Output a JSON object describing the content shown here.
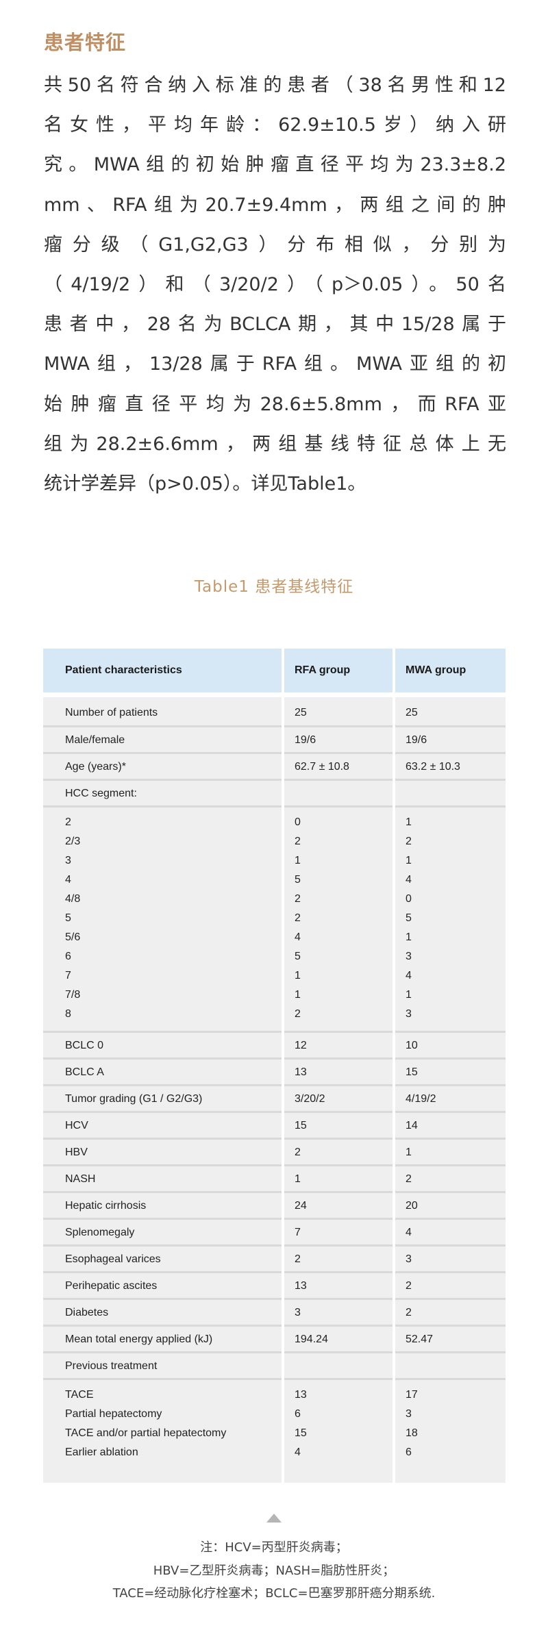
{
  "section_title": "患者特征",
  "paragraph_lines": [
    "共50名符合纳入标准的患者（38名男性和12",
    "名女性，平均年龄：62.9±10.5岁）纳入研",
    "究。MWA组的初始肿瘤直径平均为23.3±8.2",
    "mm、RFA组为20.7±9.4mm，两组之间的肿",
    "瘤分级（G1,G2,G3）分布相似，分别为",
    "（4/19/2）和（3/20/2）（p＞0.05）。50名",
    "患者中，28名为BCLCA期，其中15/28属于",
    "MWA组，13/28属于RFA组。MWA亚组的初",
    "始肿瘤直径平均为28.6±5.8mm，而RFA亚",
    "组为28.2±6.6mm，两组基线特征总体上无",
    "统计学差异（p>0.05）。详见Table1。"
  ],
  "table_caption": "Table1 患者基线特征",
  "table": {
    "headers": [
      "Patient characteristics",
      "RFA group",
      "MWA group"
    ],
    "rows_top": [
      [
        "Number of patients",
        "25",
        "25"
      ],
      [
        "Male/female",
        "19/6",
        "19/6"
      ],
      [
        "Age (years)*",
        "62.7 ± 10.8",
        "63.2 ± 10.3"
      ],
      [
        "HCC segment:",
        "",
        ""
      ]
    ],
    "segment_block": {
      "labels": [
        "2",
        "2/3",
        "3",
        "4",
        "4/8",
        "5",
        "5/6",
        "6",
        "7",
        "7/8",
        "8"
      ],
      "rfa": [
        "0",
        "2",
        "1",
        "5",
        "2",
        "2",
        "4",
        "5",
        "1",
        "1",
        "2"
      ],
      "mwa": [
        "1",
        "2",
        "1",
        "4",
        "0",
        "5",
        "1",
        "3",
        "4",
        "1",
        "3"
      ]
    },
    "rows_mid": [
      [
        "BCLC 0",
        "12",
        "10"
      ],
      [
        "BCLC A",
        "13",
        "15"
      ],
      [
        "Tumor grading (G1 / G2/G3)",
        "3/20/2",
        "4/19/2"
      ],
      [
        "HCV",
        "15",
        "14"
      ],
      [
        "HBV",
        "2",
        "1"
      ],
      [
        "NASH",
        "1",
        "2"
      ],
      [
        "Hepatic cirrhosis",
        "24",
        "20"
      ],
      [
        "Splenomegaly",
        "7",
        "4"
      ],
      [
        "Esophageal varices",
        "2",
        "3"
      ],
      [
        "Perihepatic ascites",
        "13",
        "2"
      ],
      [
        "Diabetes",
        "3",
        "2"
      ],
      [
        "Mean total energy applied (kJ)",
        "194.24",
        "52.47"
      ],
      [
        "Previous treatment",
        "",
        ""
      ]
    ],
    "treatment_block": {
      "labels": [
        "TACE",
        "Partial hepatectomy",
        "TACE and/or partial hepatectomy",
        "Earlier ablation"
      ],
      "rfa": [
        "13",
        "6",
        "15",
        "4"
      ],
      "mwa": [
        "17",
        "3",
        "18",
        "6"
      ]
    }
  },
  "footnote_icon": "triangle-up-icon",
  "footnote_lines": [
    "注：HCV=丙型肝炎病毒；",
    "HBV=乙型肝炎病毒；NASH=脂肪性肝炎；",
    "TACE=经动脉化疗栓塞术；BCLC=巴塞罗那肝癌分期系统."
  ],
  "colors": {
    "accent": "#bf8f63",
    "header_bg": "#d6e8f6",
    "row_bg": "#efefef"
  }
}
